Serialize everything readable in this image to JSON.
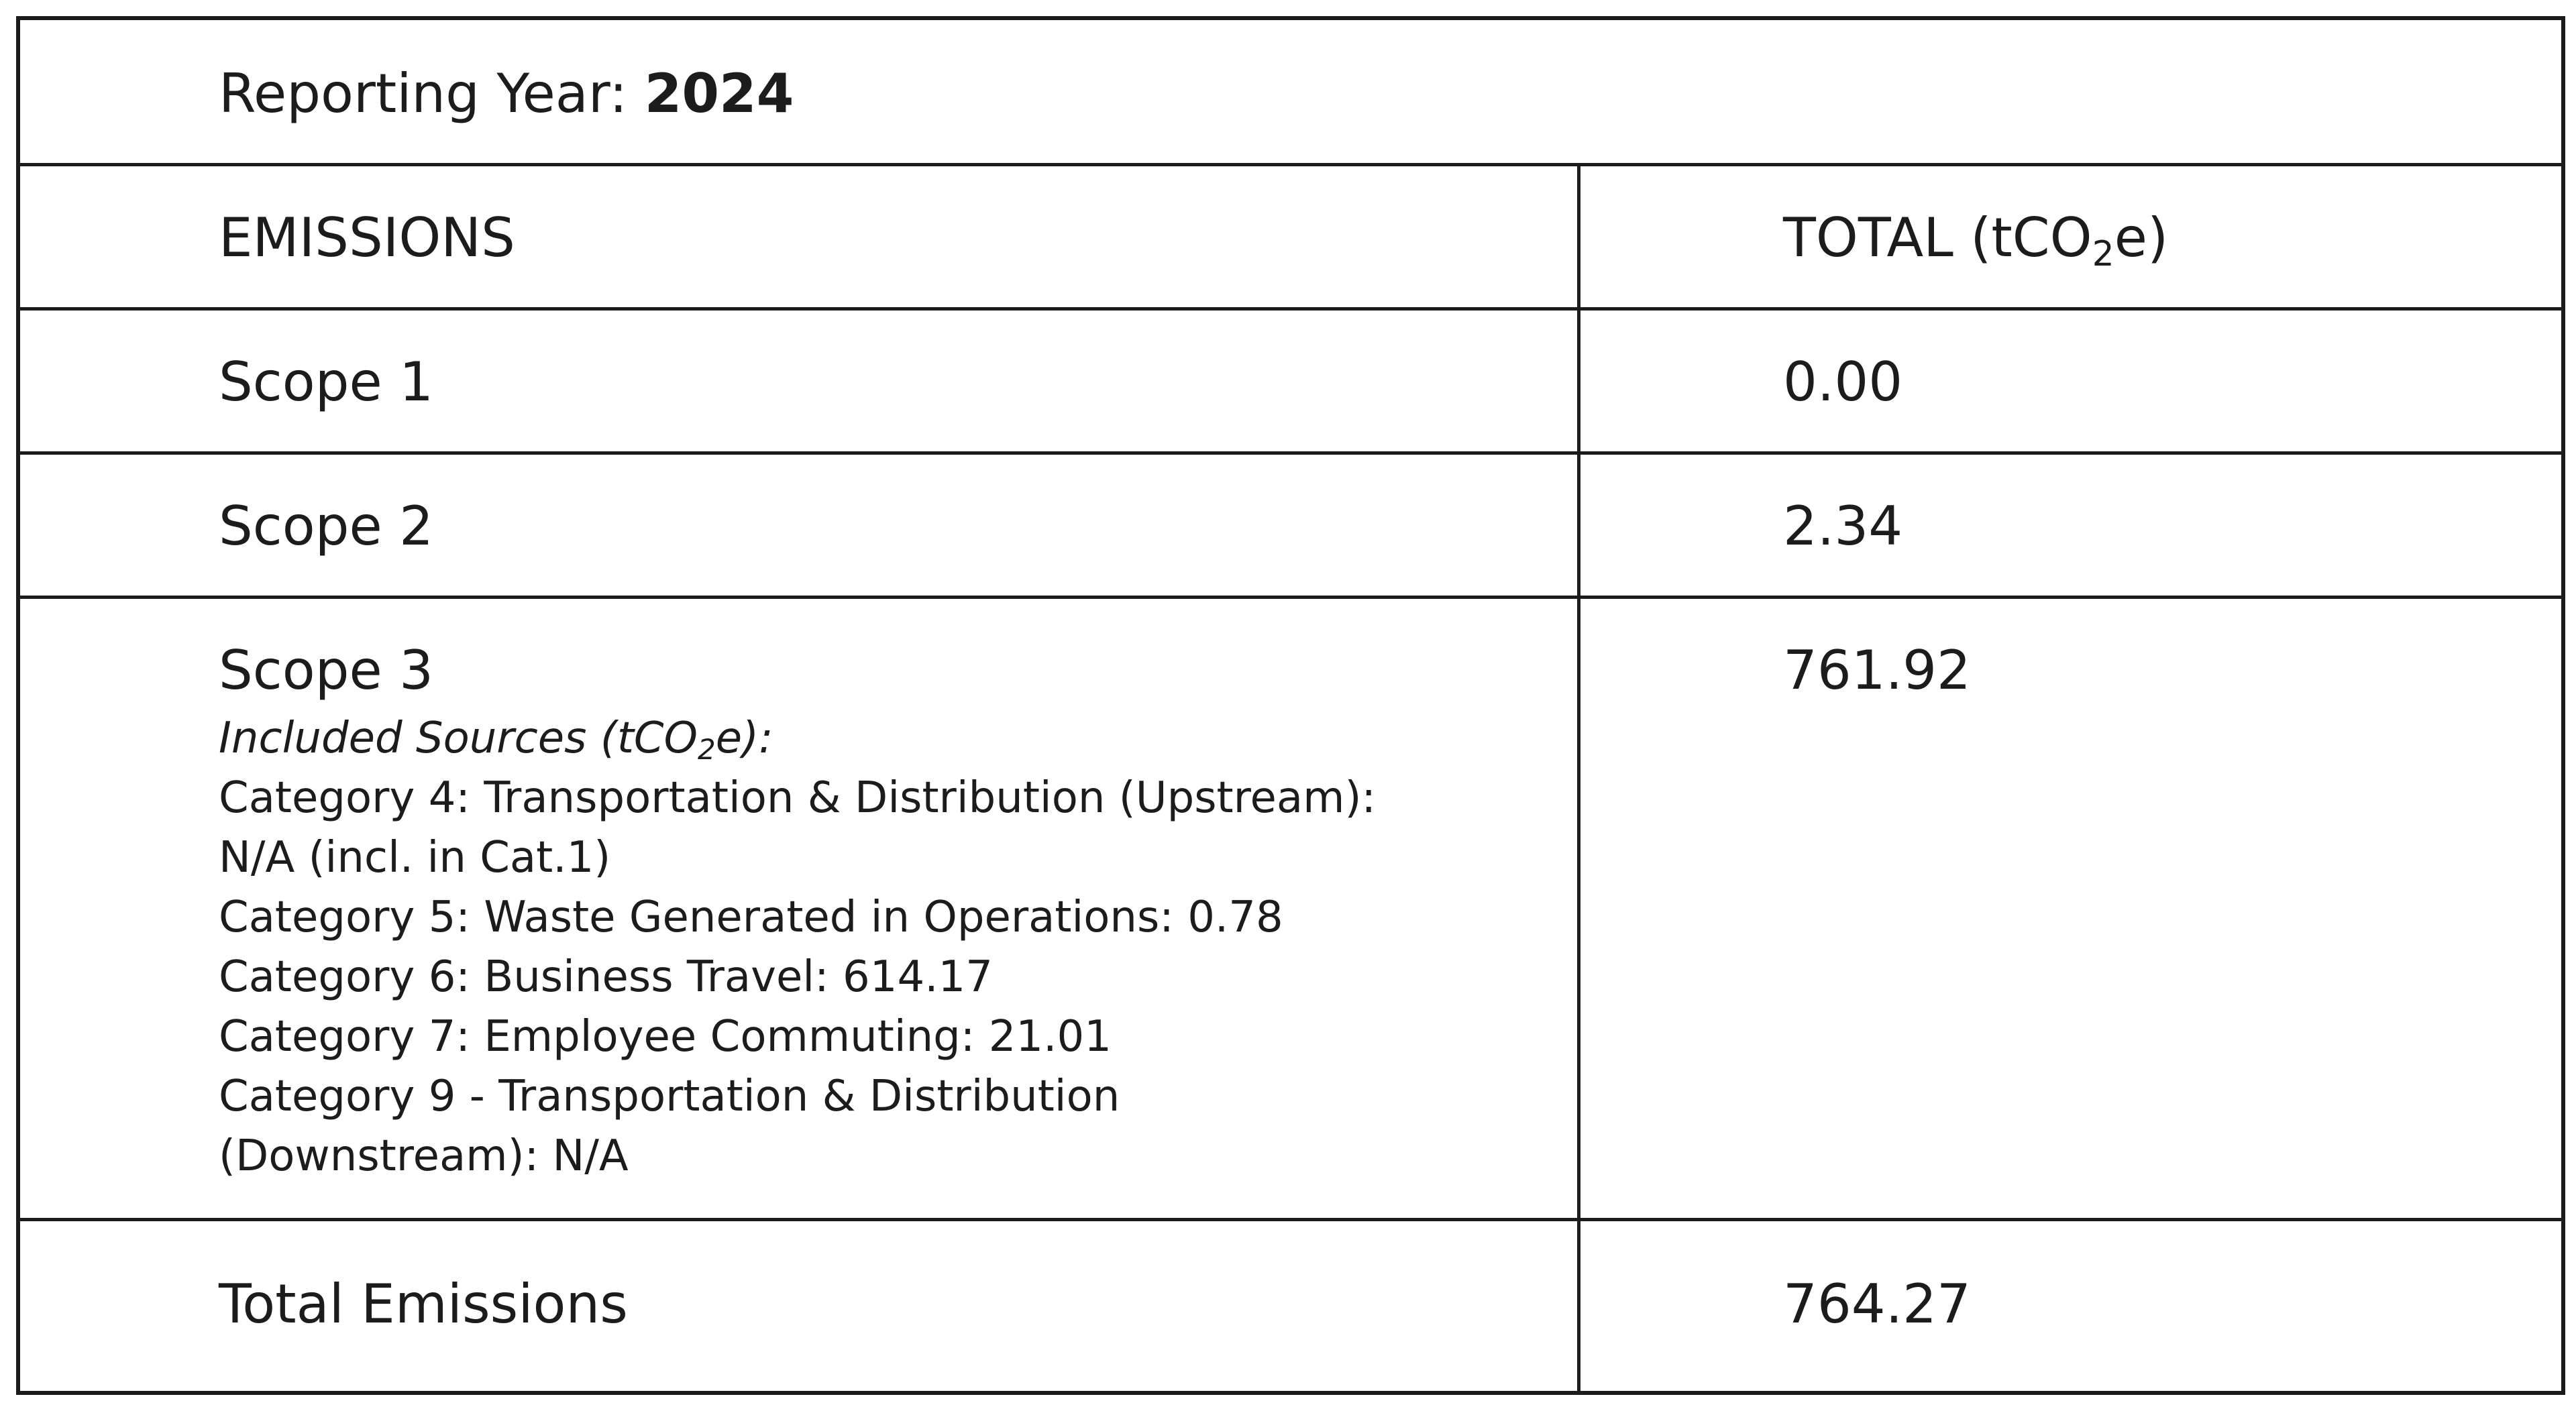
{
  "report": {
    "reporting_year_label": "Reporting Year:",
    "reporting_year_value": "2024"
  },
  "header": {
    "emissions_label": "EMISSIONS",
    "total_label_pre": "TOTAL (tCO",
    "total_label_sub": "2",
    "total_label_post": "e)"
  },
  "rows": [
    {
      "label": "Scope 1",
      "value": "0.00"
    },
    {
      "label": "Scope 2",
      "value": "2.34"
    },
    {
      "label": "Scope 3",
      "value": "761.92"
    }
  ],
  "scope3_sources": {
    "heading_pre": "Included Sources (tCO",
    "heading_sub": "2",
    "heading_post": "e):",
    "lines": [
      "Category 4: Transportation & Distribution (Upstream):",
      "N/A (incl. in Cat.1)",
      "Category 5: Waste Generated in Operations: 0.78",
      "Category 6: Business Travel: 614.17",
      "Category 7: Employee Commuting: 21.01",
      "Category 9 -  Transportation & Distribution",
      "(Downstream): N/A"
    ]
  },
  "total": {
    "label": "Total Emissions",
    "value": "764.27"
  }
}
